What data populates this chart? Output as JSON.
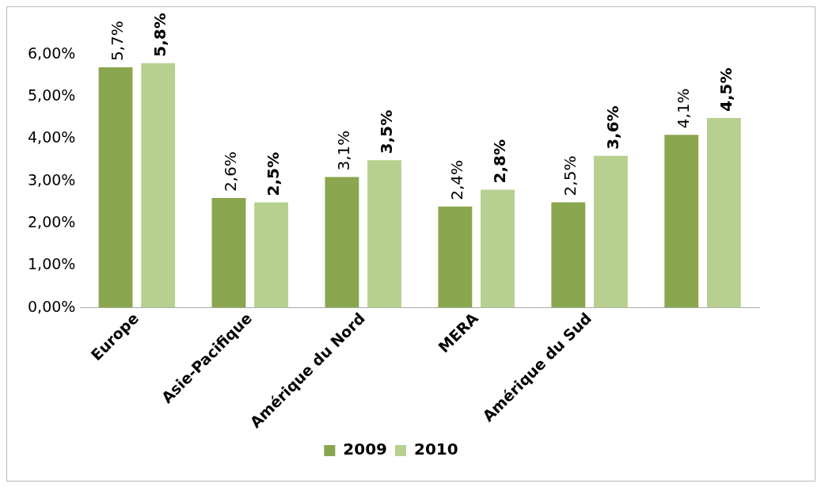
{
  "chart_data": {
    "type": "bar",
    "categories": [
      "Europe",
      "Asie-Pacifique",
      "Amérique du Nord",
      "MERA",
      "Amérique du Sud",
      null
    ],
    "series": [
      {
        "name": "2009",
        "color": "#8aa64e",
        "values": [
          5.7,
          2.6,
          3.1,
          2.4,
          2.5,
          4.1
        ],
        "value_labels": [
          "5,7%",
          "2,6%",
          "3,1%",
          "2,4%",
          "2,5%",
          "4,1%"
        ]
      },
      {
        "name": "2010",
        "color": "#b7d08f",
        "values": [
          5.8,
          2.5,
          3.5,
          2.8,
          3.6,
          4.5
        ],
        "value_labels": [
          "5,8%",
          "2,5%",
          "3,5%",
          "2,8%",
          "3,6%",
          "4,5%"
        ]
      }
    ],
    "ylim": [
      0,
      6
    ],
    "yticks": [
      {
        "value": 0,
        "label": "0,00%"
      },
      {
        "value": 1,
        "label": "1,00%"
      },
      {
        "value": 2,
        "label": "2,00%"
      },
      {
        "value": 3,
        "label": "3,00%"
      },
      {
        "value": 4,
        "label": "4,00%"
      },
      {
        "value": 5,
        "label": "5,00%"
      },
      {
        "value": 6,
        "label": "6,00%"
      }
    ],
    "grid": false,
    "legend": "bottom"
  }
}
